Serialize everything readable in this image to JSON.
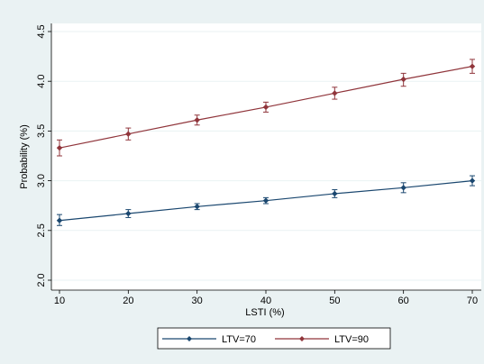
{
  "chart_data": {
    "type": "line",
    "title": "",
    "xlabel": "LSTI (%)",
    "ylabel": "Probability (%)",
    "x": [
      10,
      20,
      30,
      40,
      50,
      60,
      70
    ],
    "xticks": [
      "10",
      "20",
      "30",
      "40",
      "50",
      "60",
      "70"
    ],
    "yticks": [
      "2.0",
      "2.5",
      "3.0",
      "3.5",
      "4.0",
      "4.5"
    ],
    "xlim": [
      10,
      70
    ],
    "ylim": [
      2.0,
      4.5
    ],
    "grid": "horizontal",
    "legend": "bottom",
    "series": [
      {
        "name": "LTV=70",
        "color": "#1a476f",
        "marker": "diamond",
        "values": [
          2.6,
          2.67,
          2.74,
          2.8,
          2.87,
          2.93,
          3.0
        ],
        "ci_low": [
          2.55,
          2.63,
          2.71,
          2.77,
          2.83,
          2.88,
          2.95
        ],
        "ci_high": [
          2.66,
          2.71,
          2.77,
          2.83,
          2.91,
          2.98,
          3.05
        ]
      },
      {
        "name": "LTV=90",
        "color": "#90353b",
        "marker": "diamond",
        "values": [
          3.33,
          3.47,
          3.61,
          3.74,
          3.88,
          4.02,
          4.15
        ],
        "ci_low": [
          3.25,
          3.41,
          3.56,
          3.69,
          3.82,
          3.95,
          4.08
        ],
        "ci_high": [
          3.41,
          3.53,
          3.66,
          3.79,
          3.94,
          4.08,
          4.22
        ]
      }
    ]
  }
}
